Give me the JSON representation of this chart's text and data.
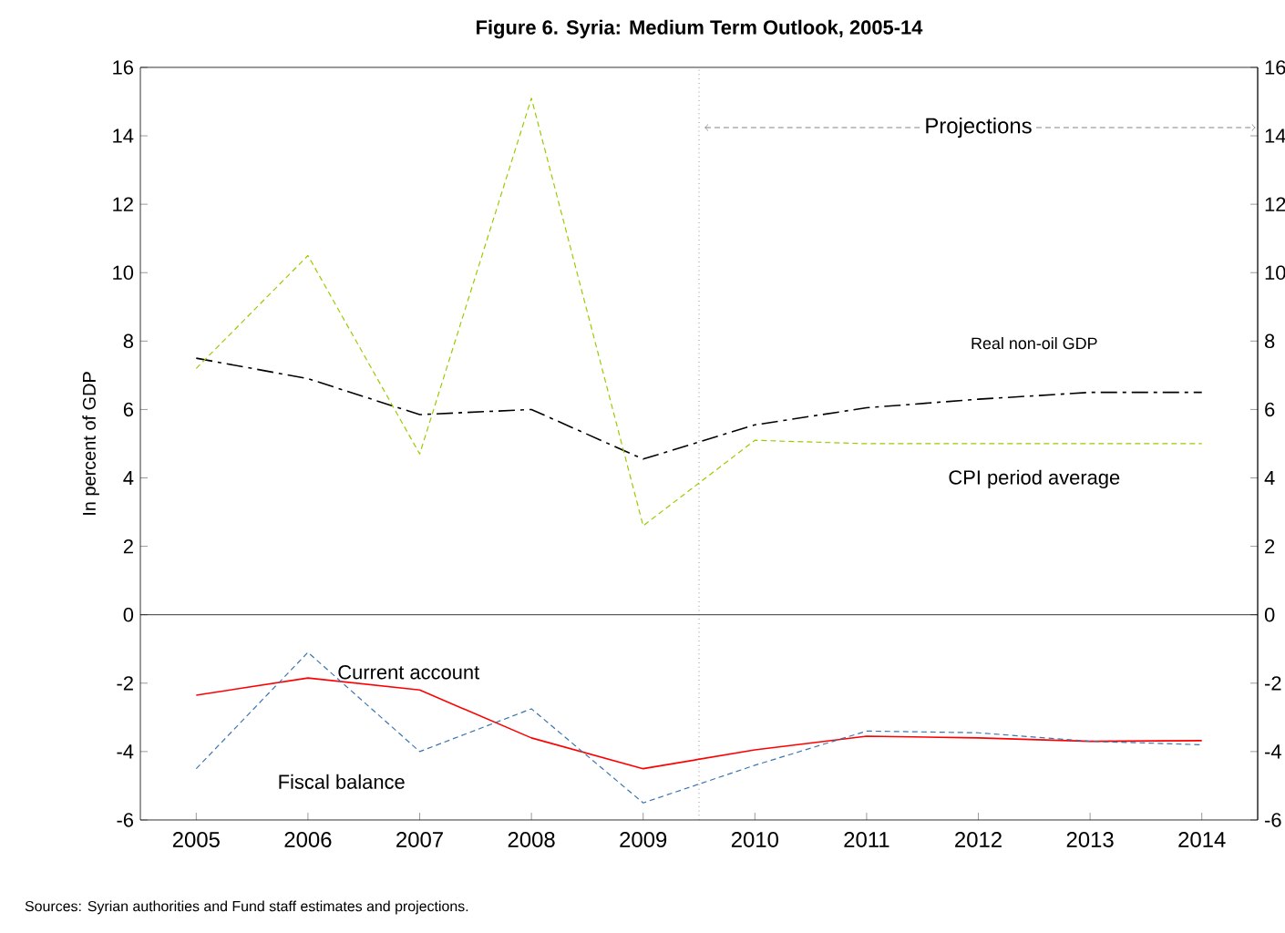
{
  "chart_data": {
    "type": "line",
    "title": "Figure 6. Syria: Medium Term Outlook, 2005-14",
    "ylabel": "In percent of GDP",
    "x": [
      2005,
      2006,
      2007,
      2008,
      2009,
      2010,
      2011,
      2012,
      2013,
      2014
    ],
    "xlim": [
      2004.5,
      2014.5
    ],
    "xticks": [
      2005,
      2006,
      2007,
      2008,
      2009,
      2010,
      2011,
      2012,
      2013,
      2014
    ],
    "ylim": [
      -6,
      16
    ],
    "yticks": [
      -6,
      -4,
      -2,
      0,
      2,
      4,
      6,
      8,
      10,
      12,
      14,
      16
    ],
    "y2lim": [
      -6,
      16
    ],
    "y2ticks": [
      -6,
      -4,
      -2,
      0,
      2,
      4,
      6,
      8,
      10,
      12,
      14,
      16
    ],
    "series": [
      {
        "name": "Real non-oil GDP",
        "color": "#000000",
        "line_style": "dashdot",
        "values": [
          7.5,
          6.9,
          5.85,
          6.0,
          4.55,
          5.55,
          6.05,
          6.3,
          6.5,
          6.5
        ]
      },
      {
        "name": "CPI period average",
        "color": "#99cc00",
        "line_style": "dashed",
        "values": [
          7.2,
          10.5,
          4.7,
          15.1,
          2.6,
          5.1,
          5.0,
          5.0,
          5.0,
          5.0
        ]
      },
      {
        "name": "Current account",
        "color": "#ff0000",
        "line_style": "solid",
        "values": [
          -2.35,
          -1.85,
          -2.2,
          -3.6,
          -4.5,
          -3.95,
          -3.55,
          -3.6,
          -3.7,
          -3.68
        ]
      },
      {
        "name": "Fiscal balance",
        "color": "#3a75b0",
        "line_style": "dashed",
        "values": [
          -4.5,
          -1.1,
          -4.0,
          -2.75,
          -5.5,
          -4.4,
          -3.4,
          -3.45,
          -3.7,
          -3.8
        ]
      }
    ],
    "ref_lines": [
      {
        "axis": "y",
        "value": 0,
        "color": "#000000",
        "line_style": "solid"
      },
      {
        "axis": "x",
        "value": 2009.5,
        "color": "#555555",
        "line_style": "dotted",
        "label": "Projections"
      }
    ],
    "annotations": [
      "Sources: Syrian authorities and Fund staff estimates and projections."
    ],
    "marker": "none"
  }
}
